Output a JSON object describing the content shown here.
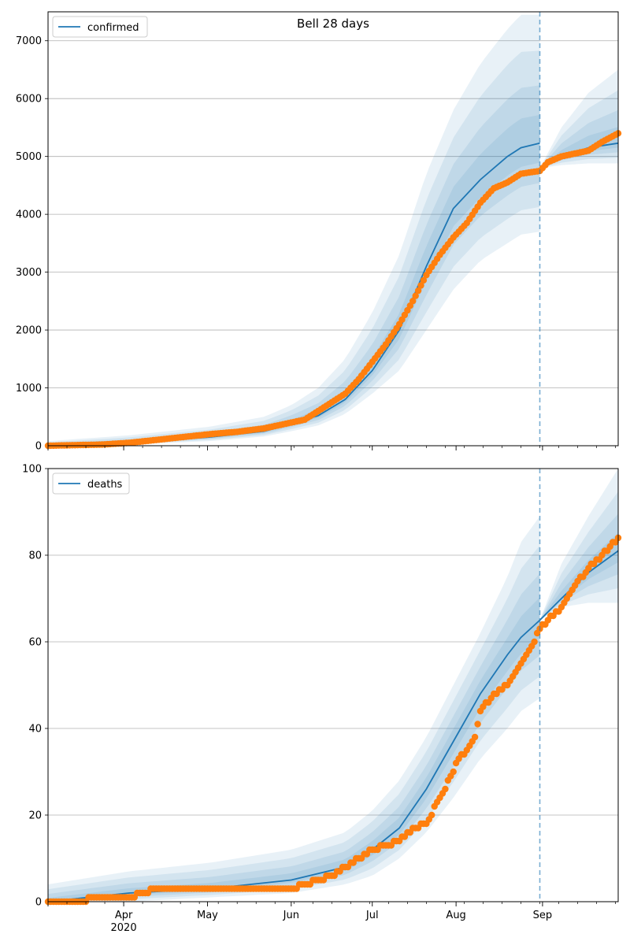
{
  "chart_data": [
    {
      "type": "line",
      "title": "Bell 28 days",
      "legend": {
        "label": "confirmed",
        "placement": "top-left"
      },
      "grid": "y",
      "ylim": [
        0,
        7500
      ],
      "yticks": [
        0,
        1000,
        2000,
        3000,
        4000,
        5000,
        6000,
        7000
      ],
      "xlim_days": [
        0,
        211
      ],
      "forecast_start_day": 182,
      "colors": {
        "model": "#1f77b4",
        "observed": "#ff7f0e",
        "band": "#1f77b4"
      },
      "model_x": [
        0,
        30,
        60,
        80,
        90,
        100,
        110,
        120,
        130,
        140,
        150,
        160,
        170,
        175,
        182
      ],
      "model_y": [
        0,
        50,
        150,
        250,
        380,
        520,
        800,
        1300,
        2000,
        3100,
        4100,
        4600,
        5000,
        5150,
        5230
      ],
      "model_band_upper": [
        80,
        180,
        330,
        500,
        700,
        1000,
        1500,
        2300,
        3300,
        4700,
        5800,
        6600,
        7200,
        7450,
        7450
      ],
      "model_band_lower": [
        0,
        20,
        80,
        160,
        250,
        350,
        550,
        900,
        1300,
        2000,
        2700,
        3200,
        3500,
        3650,
        3700
      ],
      "forecast_x": [
        182,
        190,
        200,
        211
      ],
      "forecast_y": [
        4800,
        5000,
        5150,
        5230
      ],
      "forecast_band_upper": [
        4800,
        5500,
        6100,
        6500
      ],
      "forecast_band_lower": [
        4800,
        4850,
        4880,
        4880
      ],
      "observed_x": [
        0,
        20,
        30,
        40,
        50,
        60,
        70,
        80,
        90,
        95,
        100,
        105,
        110,
        115,
        120,
        125,
        130,
        135,
        140,
        145,
        150,
        155,
        160,
        165,
        170,
        175,
        182,
        185,
        190,
        195,
        200,
        205,
        211
      ],
      "observed_y": [
        0,
        20,
        50,
        100,
        150,
        200,
        240,
        300,
        400,
        450,
        600,
        750,
        900,
        1150,
        1450,
        1750,
        2100,
        2500,
        2950,
        3300,
        3600,
        3850,
        4200,
        4450,
        4550,
        4700,
        4750,
        4900,
        5000,
        5050,
        5100,
        5250,
        5400
      ]
    },
    {
      "type": "line",
      "legend": {
        "label": "deaths",
        "placement": "top-left"
      },
      "grid": "y",
      "ylim": [
        0,
        100
      ],
      "yticks": [
        0,
        20,
        40,
        60,
        80,
        100
      ],
      "xlim_days": [
        0,
        211
      ],
      "forecast_start_day": 182,
      "xticks": [
        {
          "day": 28,
          "label": "Apr",
          "sub": "2020"
        },
        {
          "day": 59,
          "label": "May"
        },
        {
          "day": 90,
          "label": "Jun"
        },
        {
          "day": 120,
          "label": "Jul"
        },
        {
          "day": 151,
          "label": "Aug"
        },
        {
          "day": 183,
          "label": "Sep"
        }
      ],
      "colors": {
        "model": "#1f77b4",
        "observed": "#ff7f0e",
        "band": "#1f77b4"
      },
      "model_x": [
        0,
        30,
        60,
        90,
        110,
        120,
        130,
        140,
        150,
        160,
        170,
        175,
        182
      ],
      "model_y": [
        0,
        2,
        3,
        5,
        8,
        12,
        17,
        26,
        37,
        48,
        57,
        61,
        65
      ],
      "model_band_upper": [
        4,
        7,
        9,
        12,
        16,
        21,
        28,
        38,
        50,
        62,
        75,
        83,
        89
      ],
      "model_band_lower": [
        0,
        0,
        1,
        2,
        4,
        6,
        10,
        16,
        24,
        33,
        40,
        44,
        47
      ],
      "forecast_x": [
        182,
        190,
        200,
        211
      ],
      "forecast_y": [
        65,
        70,
        76,
        81
      ],
      "forecast_band_upper": [
        65,
        78,
        89,
        100
      ],
      "forecast_band_lower": [
        65,
        68,
        69,
        69
      ],
      "observed_x": [
        0,
        30,
        35,
        40,
        60,
        90,
        100,
        105,
        110,
        115,
        120,
        125,
        130,
        135,
        140,
        145,
        150,
        152,
        155,
        158,
        160,
        165,
        170,
        175,
        180,
        182,
        185,
        190,
        195,
        200,
        205,
        211
      ],
      "observed_y": [
        0,
        1,
        2,
        3,
        3,
        3,
        5,
        6,
        8,
        10,
        12,
        13,
        14,
        17,
        18,
        24,
        30,
        33,
        35,
        38,
        44,
        48,
        50,
        55,
        60,
        63,
        65,
        68,
        73,
        77,
        80,
        84
      ]
    }
  ]
}
